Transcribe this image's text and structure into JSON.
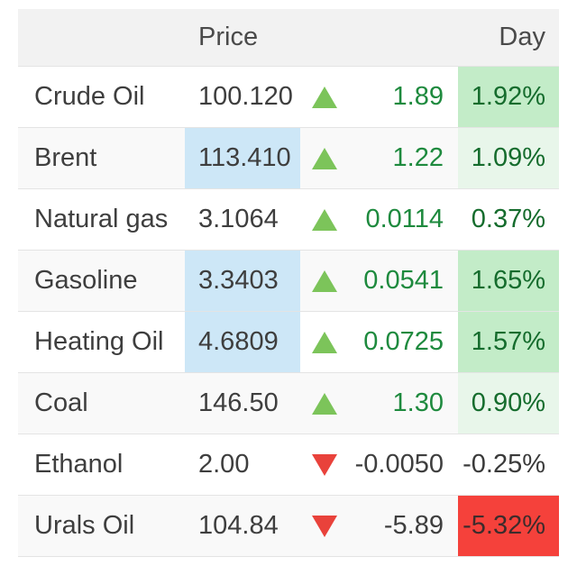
{
  "colors": {
    "up_green": "#7cc45a",
    "down_red": "#e9423b",
    "positive_text": "#1e8a3e",
    "day_green_text": "#156c2d",
    "strong_green_bg": "#c3ecc8",
    "light_green_bg": "#e8f6ea",
    "red_bg": "#f5413b",
    "price_highlight_bg": "#cde7f7",
    "header_bg": "#f2f2f2",
    "zebra_bg": "#f9f9f9"
  },
  "table": {
    "headers": {
      "price": "Price",
      "day": "Day"
    },
    "rows": [
      {
        "name": "Crude Oil",
        "price": "100.120",
        "price_highlight": false,
        "direction": "up",
        "change": "1.89",
        "day": "1.92%",
        "day_bg": "strong-green"
      },
      {
        "name": "Brent",
        "price": "113.410",
        "price_highlight": true,
        "direction": "up",
        "change": "1.22",
        "day": "1.09%",
        "day_bg": "light-green"
      },
      {
        "name": "Natural gas",
        "price": "3.1064",
        "price_highlight": false,
        "direction": "up",
        "change": "0.0114",
        "day": "0.37%",
        "day_bg": "none"
      },
      {
        "name": "Gasoline",
        "price": "3.3403",
        "price_highlight": true,
        "direction": "up",
        "change": "0.0541",
        "day": "1.65%",
        "day_bg": "strong-green"
      },
      {
        "name": "Heating Oil",
        "price": "4.6809",
        "price_highlight": true,
        "direction": "up",
        "change": "0.0725",
        "day": "1.57%",
        "day_bg": "strong-green"
      },
      {
        "name": "Coal",
        "price": "146.50",
        "price_highlight": false,
        "direction": "up",
        "change": "1.30",
        "day": "0.90%",
        "day_bg": "light-green"
      },
      {
        "name": "Ethanol",
        "price": "2.00",
        "price_highlight": false,
        "direction": "down",
        "change": "-0.0050",
        "day": "-0.25%",
        "day_bg": "none"
      },
      {
        "name": "Urals Oil",
        "price": "104.84",
        "price_highlight": false,
        "direction": "down",
        "change": "-5.89",
        "day": "-5.32%",
        "day_bg": "red"
      }
    ]
  }
}
